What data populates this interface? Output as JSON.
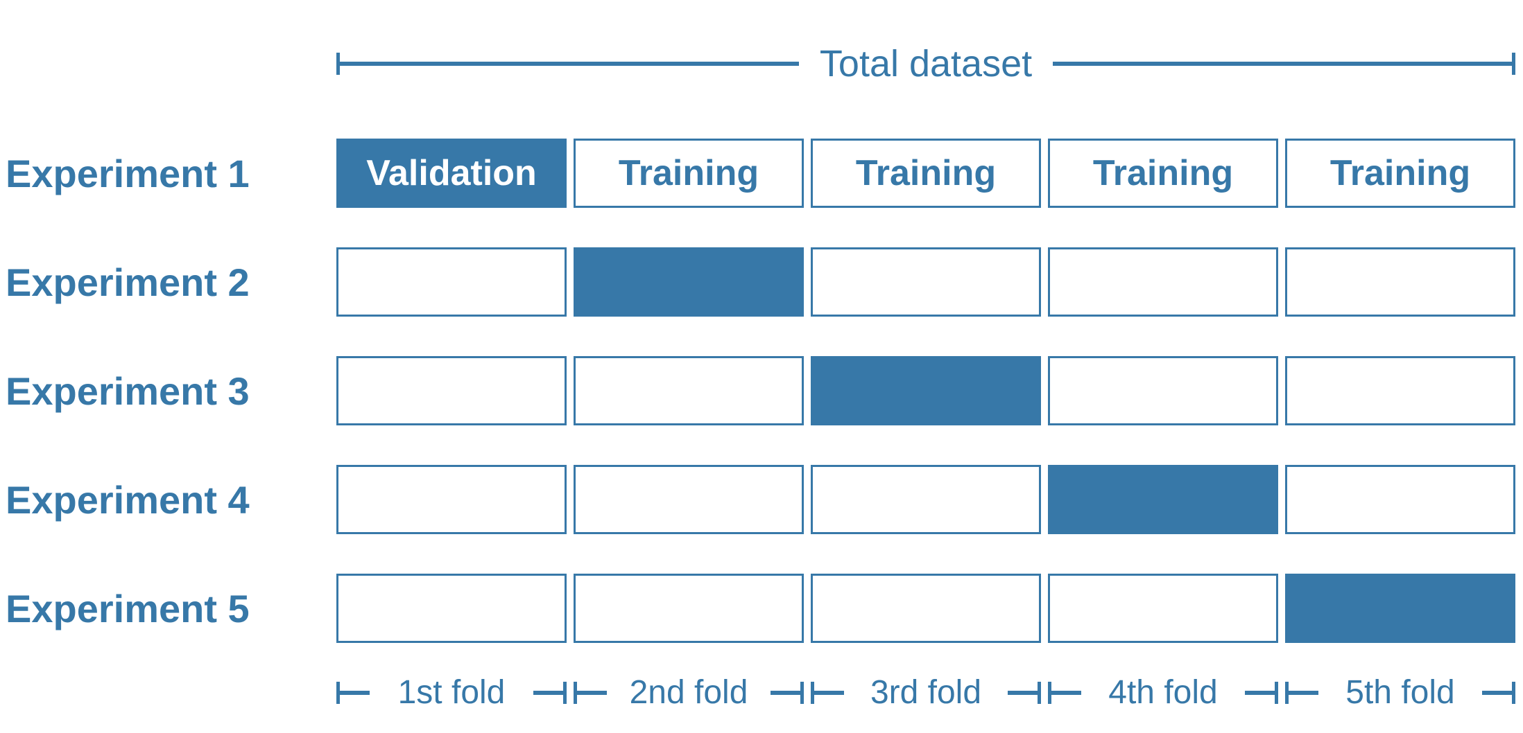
{
  "title": "Total dataset",
  "colors": {
    "accent": "#3778A8",
    "box_fill": "#3778A8",
    "box_border": "#3778A8",
    "validation_text": "#FFFFFF",
    "training_text": "#3778A8",
    "background": "#FFFFFF"
  },
  "rows": [
    {
      "label": "Experiment 1",
      "cells": [
        {
          "type": "validation",
          "label": "Validation"
        },
        {
          "type": "training",
          "label": "Training"
        },
        {
          "type": "training",
          "label": "Training"
        },
        {
          "type": "training",
          "label": "Training"
        },
        {
          "type": "training",
          "label": "Training"
        }
      ]
    },
    {
      "label": "Experiment 2",
      "cells": [
        {
          "type": "empty",
          "label": ""
        },
        {
          "type": "filled",
          "label": ""
        },
        {
          "type": "empty",
          "label": ""
        },
        {
          "type": "empty",
          "label": ""
        },
        {
          "type": "empty",
          "label": ""
        }
      ]
    },
    {
      "label": "Experiment 3",
      "cells": [
        {
          "type": "empty",
          "label": ""
        },
        {
          "type": "empty",
          "label": ""
        },
        {
          "type": "filled",
          "label": ""
        },
        {
          "type": "empty",
          "label": ""
        },
        {
          "type": "empty",
          "label": ""
        }
      ]
    },
    {
      "label": "Experiment 4",
      "cells": [
        {
          "type": "empty",
          "label": ""
        },
        {
          "type": "empty",
          "label": ""
        },
        {
          "type": "empty",
          "label": ""
        },
        {
          "type": "filled",
          "label": ""
        },
        {
          "type": "empty",
          "label": ""
        }
      ]
    },
    {
      "label": "Experiment 5",
      "cells": [
        {
          "type": "empty",
          "label": ""
        },
        {
          "type": "empty",
          "label": ""
        },
        {
          "type": "empty",
          "label": ""
        },
        {
          "type": "empty",
          "label": ""
        },
        {
          "type": "filled",
          "label": ""
        }
      ]
    }
  ],
  "folds": [
    "1st fold",
    "2nd fold",
    "3rd fold",
    "4th fold",
    "5th fold"
  ]
}
